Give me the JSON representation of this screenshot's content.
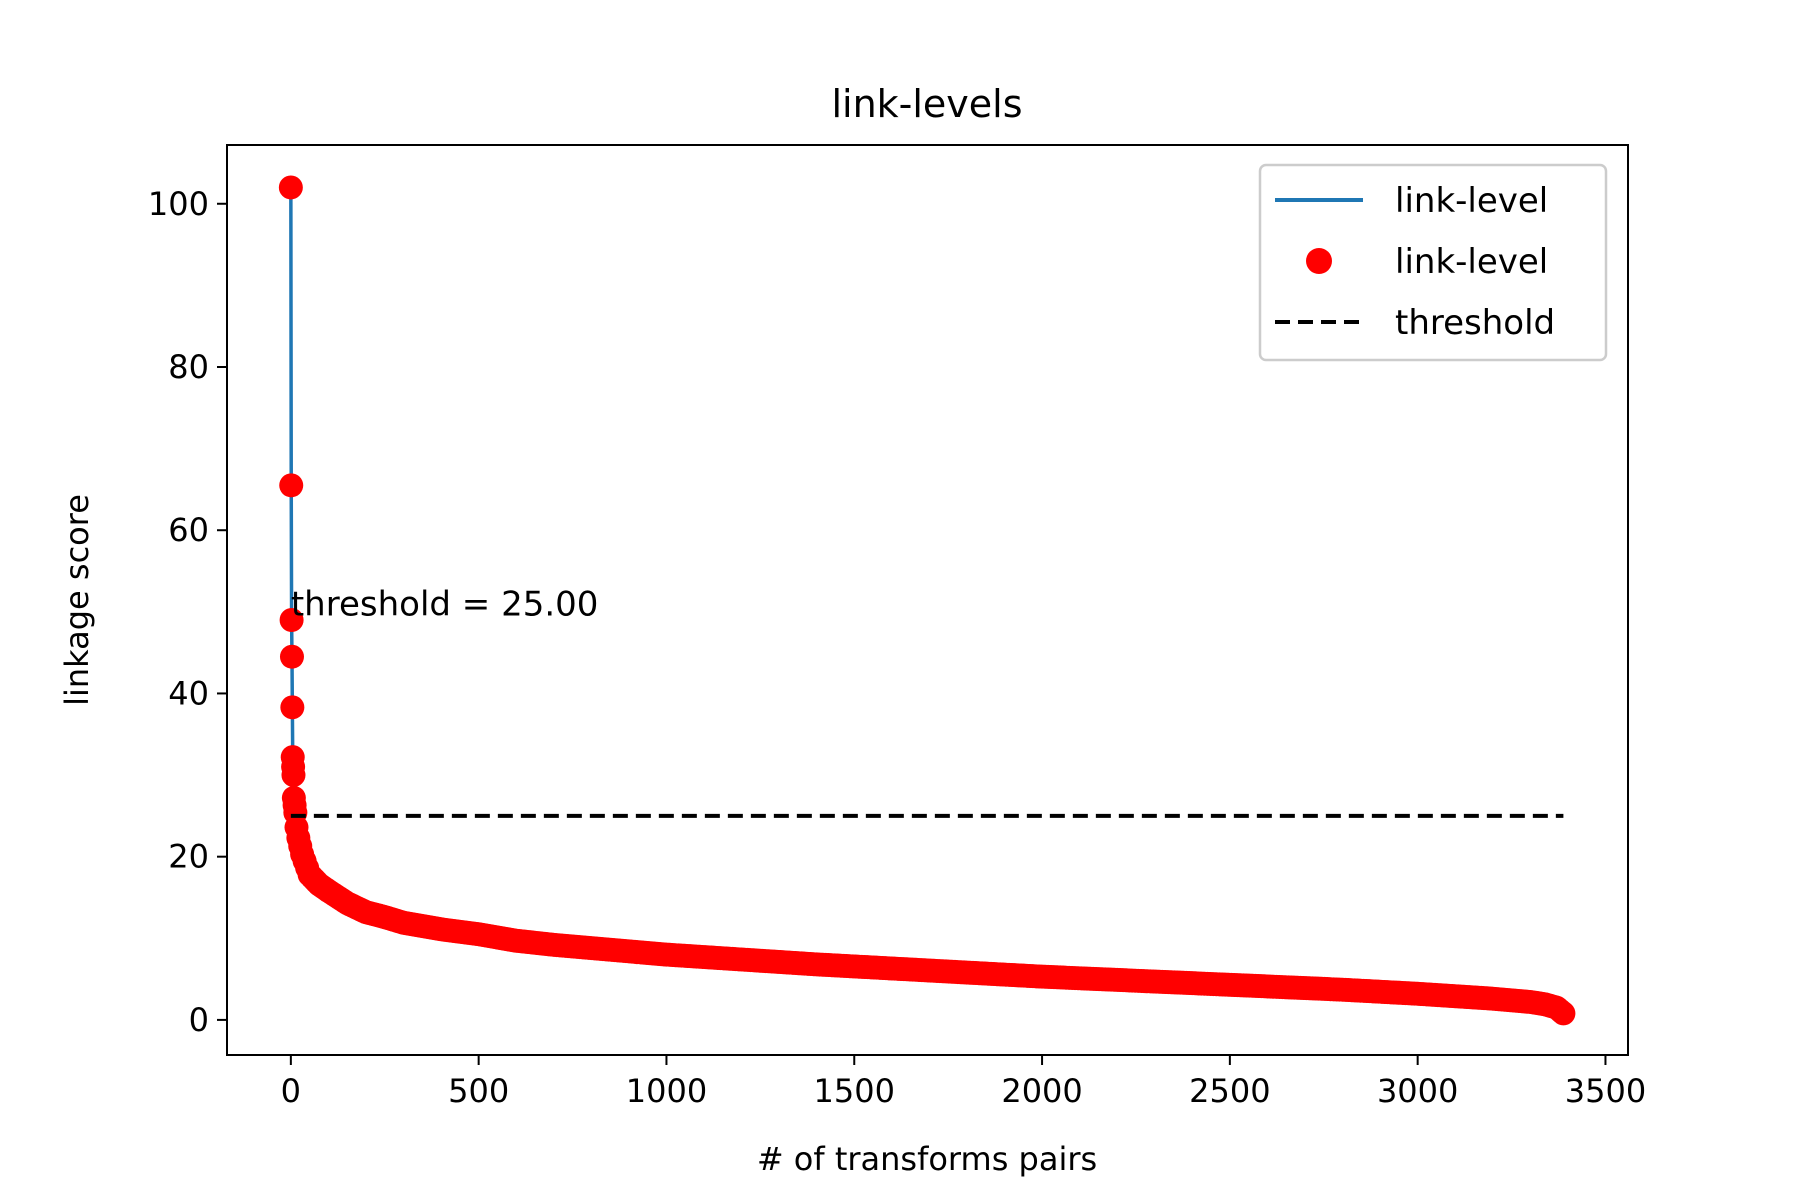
{
  "chart_data": {
    "type": "line",
    "title": "link-levels",
    "xlabel": "# of transforms pairs",
    "ylabel": "linkage score",
    "xlim": [
      -170,
      3560
    ],
    "ylim": [
      -4.3,
      107.2
    ],
    "xticks": [
      0,
      500,
      1000,
      1500,
      2000,
      2500,
      3000,
      3500
    ],
    "yticks": [
      0,
      20,
      40,
      60,
      80,
      100
    ],
    "grid": false,
    "legend_position": "top-right",
    "legend": [
      {
        "label": "link-level",
        "kind": "line",
        "color": "#1f77b4"
      },
      {
        "label": "link-level",
        "kind": "marker",
        "color": "#ff0000"
      },
      {
        "label": "threshold",
        "kind": "dashed",
        "color": "#000000"
      }
    ],
    "threshold": {
      "value": 25,
      "x_range": [
        0,
        3388
      ]
    },
    "annotation": {
      "text": "threshold = 25.00",
      "x": 0,
      "y": 51
    },
    "series": [
      {
        "name": "link-level",
        "line_color": "#1f77b4",
        "marker_color": "#ff0000",
        "x": [
          0,
          1,
          2,
          3,
          4,
          5,
          6,
          7,
          8,
          10,
          12,
          15,
          20,
          30,
          50,
          75,
          100,
          150,
          200,
          250,
          300,
          400,
          500,
          600,
          700,
          800,
          900,
          1000,
          1200,
          1400,
          1600,
          1800,
          2000,
          2200,
          2400,
          2600,
          2800,
          3000,
          3100,
          3200,
          3300,
          3340,
          3370,
          3388
        ],
        "y": [
          102,
          65.5,
          49,
          44.5,
          38.3,
          32.2,
          31,
          30,
          27.2,
          26.3,
          25.4,
          23.6,
          22.3,
          20.3,
          17.8,
          16.6,
          15.8,
          14.3,
          13.2,
          12.6,
          11.9,
          11.1,
          10.5,
          9.7,
          9.2,
          8.8,
          8.4,
          8.0,
          7.4,
          6.8,
          6.3,
          5.8,
          5.3,
          4.9,
          4.5,
          4.1,
          3.7,
          3.2,
          2.9,
          2.6,
          2.2,
          1.9,
          1.5,
          0.8
        ]
      }
    ]
  }
}
